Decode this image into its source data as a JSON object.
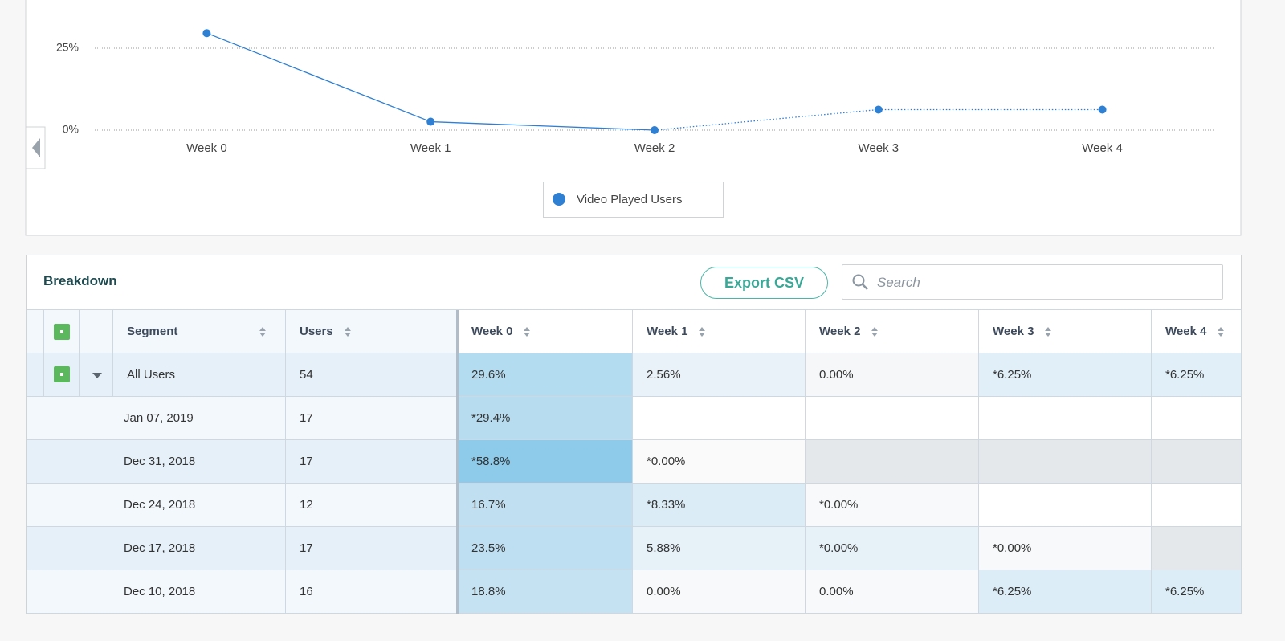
{
  "chart_data": {
    "type": "line",
    "categories": [
      "Week 0",
      "Week 1",
      "Week 2",
      "Week 3",
      "Week 4"
    ],
    "series": [
      {
        "name": "Video Played Users",
        "color": "#2f7fd3",
        "values": [
          29.6,
          2.56,
          0,
          6.25,
          6.25
        ],
        "segment_styles": [
          "solid",
          "solid",
          "dotted",
          "dotted"
        ]
      }
    ],
    "ylim": [
      0,
      32
    ],
    "yticks": [
      {
        "value": 0,
        "label": "0%"
      },
      {
        "value": 25,
        "label": "25%"
      }
    ],
    "grid": true,
    "legend": "bottom"
  },
  "breakdown": {
    "title": "Breakdown",
    "export_button": "Export CSV",
    "search_placeholder": "Search",
    "columns": [
      "Segment",
      "Users",
      "Week 0",
      "Week 1",
      "Week 2",
      "Week 3",
      "Week 4"
    ],
    "rows": [
      {
        "segment": "All Users",
        "users": 54,
        "cells": [
          "29.6%",
          "2.56%",
          "0.00%",
          "*6.25%",
          "*6.25%"
        ],
        "fills": [
          "#b4dcf0",
          "#e9f2f8",
          "#f5f7f9",
          "#e0eff8",
          "#e0eff8"
        ]
      },
      {
        "segment": "Jan 07, 2019",
        "users": 17,
        "cells": [
          "*29.4%",
          null,
          null,
          null,
          null
        ],
        "fills": [
          "#b7dcef",
          "#ffffff",
          "#ffffff",
          "#ffffff",
          "#ffffff"
        ]
      },
      {
        "segment": "Dec 31, 2018",
        "users": 17,
        "cells": [
          "*58.8%",
          "*0.00%",
          null,
          null,
          null
        ],
        "fills": [
          "#8ecbea",
          "#fafafa",
          "#e5e8eb",
          "#e5e8eb",
          "#e5e8eb"
        ]
      },
      {
        "segment": "Dec 24, 2018",
        "users": 12,
        "cells": [
          "16.7%",
          "*8.33%",
          "*0.00%",
          null,
          null
        ],
        "fills": [
          "#c0e0f1",
          "#dcecf6",
          "#f7f9fa",
          "#ffffff",
          "#ffffff"
        ]
      },
      {
        "segment": "Dec 17, 2018",
        "users": 17,
        "cells": [
          "23.5%",
          "5.88%",
          "*0.00%",
          "*0.00%",
          null
        ],
        "fills": [
          "#bedff1",
          "#e6f1f8",
          "#e6f1f8",
          "#f7f9fa",
          "#e5e8eb"
        ]
      },
      {
        "segment": "Dec 10, 2018",
        "users": 16,
        "cells": [
          "18.8%",
          "0.00%",
          "0.00%",
          "*6.25%",
          "*6.25%"
        ],
        "fills": [
          "#c4e2f2",
          "#f7f9fa",
          "#f7f9fa",
          "#dcedf7",
          "#dcedf7"
        ]
      }
    ]
  }
}
